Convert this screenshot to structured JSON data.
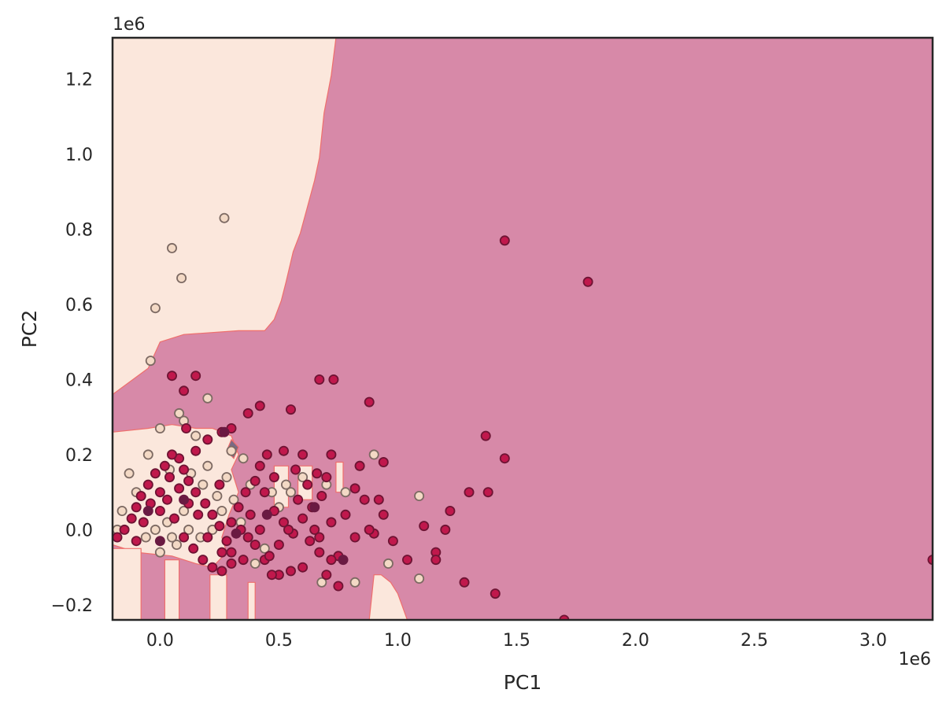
{
  "chart_data": {
    "type": "scatter",
    "title": "",
    "xlabel": "PC1",
    "ylabel": "PC2",
    "x_offset_label": "1e6",
    "y_offset_label": "1e6",
    "xlim": [
      -0.2,
      3.25
    ],
    "ylim": [
      -0.24,
      1.31
    ],
    "xticks": [
      0.0,
      0.5,
      1.0,
      1.5,
      2.0,
      2.5,
      3.0
    ],
    "xtick_labels": [
      "0.0",
      "0.5",
      "1.0",
      "1.5",
      "2.0",
      "2.5",
      "3.0"
    ],
    "yticks": [
      -0.2,
      0.0,
      0.2,
      0.4,
      0.6,
      0.8,
      1.0,
      1.2
    ],
    "ytick_labels": [
      "−0.2",
      "0.0",
      "0.2",
      "0.4",
      "0.6",
      "0.8",
      "1.0",
      "1.2"
    ],
    "grid": false,
    "legend": "none",
    "colors": {
      "background_region": "#d789a8",
      "light_region": "#fbe7dc",
      "boundary_line": "#ef6f6c",
      "small_region": "#7a6a84",
      "class_a_fill": "#c0184c",
      "class_a_edge": "#6e1434",
      "class_b_fill": "#f3d9c5",
      "class_b_edge": "#7d6a63",
      "class_c_fill": "#6a1a42",
      "axes_edge": "#262626"
    },
    "decision_regions": [
      {
        "name": "light-region-top-left",
        "color": "#fbe7dc",
        "points": [
          [
            -0.2,
            1.31
          ],
          [
            0.74,
            1.31
          ],
          [
            0.72,
            1.21
          ],
          [
            0.69,
            1.11
          ],
          [
            0.67,
            0.99
          ],
          [
            0.65,
            0.93
          ],
          [
            0.62,
            0.86
          ],
          [
            0.59,
            0.79
          ],
          [
            0.56,
            0.74
          ],
          [
            0.53,
            0.66
          ],
          [
            0.51,
            0.61
          ],
          [
            0.48,
            0.56
          ],
          [
            0.44,
            0.53
          ],
          [
            0.33,
            0.53
          ],
          [
            0.1,
            0.52
          ],
          [
            0.0,
            0.5
          ],
          [
            -0.05,
            0.43
          ],
          [
            -0.2,
            0.36
          ]
        ]
      },
      {
        "name": "light-region-bottom-left",
        "color": "#fbe7dc",
        "points": [
          [
            -0.2,
            0.26
          ],
          [
            -0.05,
            0.27
          ],
          [
            0.05,
            0.28
          ],
          [
            0.15,
            0.27
          ],
          [
            0.22,
            0.27
          ],
          [
            0.3,
            0.25
          ],
          [
            0.33,
            0.2
          ],
          [
            0.3,
            0.16
          ],
          [
            0.33,
            0.1
          ],
          [
            0.29,
            0.04
          ],
          [
            0.26,
            -0.02
          ],
          [
            0.28,
            -0.06
          ],
          [
            0.22,
            -0.1
          ],
          [
            0.15,
            -0.09
          ],
          [
            0.05,
            -0.07
          ],
          [
            -0.1,
            -0.06
          ],
          [
            -0.2,
            -0.04
          ]
        ]
      },
      {
        "name": "light-strip-1",
        "color": "#fbe7dc",
        "points": [
          [
            -0.2,
            -0.05
          ],
          [
            -0.08,
            -0.05
          ],
          [
            -0.08,
            -0.24
          ],
          [
            -0.2,
            -0.24
          ]
        ]
      },
      {
        "name": "light-strip-2",
        "color": "#fbe7dc",
        "points": [
          [
            0.02,
            -0.08
          ],
          [
            0.08,
            -0.08
          ],
          [
            0.08,
            -0.24
          ],
          [
            0.02,
            -0.24
          ]
        ]
      },
      {
        "name": "light-strip-3",
        "color": "#fbe7dc",
        "points": [
          [
            0.21,
            -0.12
          ],
          [
            0.28,
            -0.12
          ],
          [
            0.28,
            -0.24
          ],
          [
            0.21,
            -0.24
          ]
        ]
      },
      {
        "name": "light-strip-4",
        "color": "#fbe7dc",
        "points": [
          [
            0.37,
            -0.14
          ],
          [
            0.4,
            -0.14
          ],
          [
            0.4,
            -0.24
          ],
          [
            0.37,
            -0.24
          ]
        ]
      },
      {
        "name": "light-strip-5",
        "color": "#fbe7dc",
        "points": [
          [
            0.9,
            -0.12
          ],
          [
            0.93,
            -0.12
          ],
          [
            0.97,
            -0.14
          ],
          [
            1.0,
            -0.17
          ],
          [
            1.04,
            -0.24
          ],
          [
            0.88,
            -0.24
          ]
        ]
      },
      {
        "name": "light-spot-1",
        "color": "#fbe7dc",
        "points": [
          [
            0.58,
            0.17
          ],
          [
            0.64,
            0.17
          ],
          [
            0.64,
            0.08
          ],
          [
            0.58,
            0.08
          ]
        ]
      },
      {
        "name": "light-spot-2",
        "color": "#fbe7dc",
        "points": [
          [
            0.48,
            0.17
          ],
          [
            0.54,
            0.17
          ],
          [
            0.54,
            0.06
          ],
          [
            0.48,
            0.06
          ]
        ]
      },
      {
        "name": "light-spot-3",
        "color": "#fbe7dc",
        "points": [
          [
            0.74,
            0.18
          ],
          [
            0.77,
            0.18
          ],
          [
            0.77,
            0.1
          ],
          [
            0.74,
            0.1
          ]
        ]
      },
      {
        "name": "dark-gray-spot",
        "color": "#7a6a84",
        "points": [
          [
            0.28,
            0.21
          ],
          [
            0.3,
            0.24
          ],
          [
            0.33,
            0.22
          ],
          [
            0.31,
            0.19
          ]
        ]
      }
    ],
    "series": [
      {
        "name": "",
        "marker": "filled-crimson",
        "points": [
          [
            1.45,
            0.77
          ],
          [
            1.8,
            0.66
          ],
          [
            1.37,
            0.25
          ],
          [
            1.45,
            0.19
          ],
          [
            0.88,
            0.34
          ],
          [
            0.67,
            0.4
          ],
          [
            0.73,
            0.4
          ],
          [
            0.55,
            0.32
          ],
          [
            0.42,
            0.33
          ],
          [
            0.37,
            0.31
          ],
          [
            0.15,
            0.41
          ],
          [
            0.1,
            0.37
          ],
          [
            0.05,
            0.41
          ],
          [
            0.6,
            0.2
          ],
          [
            0.72,
            0.2
          ],
          [
            0.94,
            0.18
          ],
          [
            0.84,
            0.17
          ],
          [
            1.3,
            0.1
          ],
          [
            1.38,
            0.1
          ],
          [
            1.22,
            0.05
          ],
          [
            1.11,
            0.01
          ],
          [
            1.2,
            0.0
          ],
          [
            0.94,
            0.04
          ],
          [
            0.92,
            0.08
          ],
          [
            0.98,
            -0.03
          ],
          [
            1.04,
            -0.08
          ],
          [
            1.16,
            -0.06
          ],
          [
            1.16,
            -0.08
          ],
          [
            1.28,
            -0.14
          ],
          [
            1.41,
            -0.17
          ],
          [
            1.7,
            -0.24
          ],
          [
            3.25,
            -0.08
          ],
          [
            0.82,
            0.11
          ],
          [
            0.86,
            0.08
          ],
          [
            0.9,
            -0.01
          ],
          [
            0.88,
            0.0
          ],
          [
            0.82,
            -0.02
          ],
          [
            0.75,
            -0.07
          ],
          [
            0.72,
            -0.08
          ],
          [
            0.7,
            -0.12
          ],
          [
            0.75,
            -0.15
          ],
          [
            0.67,
            -0.06
          ],
          [
            0.63,
            -0.03
          ],
          [
            0.6,
            -0.1
          ],
          [
            0.55,
            -0.11
          ],
          [
            0.5,
            -0.12
          ],
          [
            0.47,
            -0.12
          ],
          [
            0.44,
            -0.08
          ],
          [
            0.4,
            -0.04
          ],
          [
            0.37,
            -0.02
          ],
          [
            0.35,
            -0.08
          ],
          [
            0.3,
            -0.06
          ],
          [
            0.28,
            -0.03
          ],
          [
            0.25,
            0.01
          ],
          [
            0.22,
            0.04
          ],
          [
            0.19,
            0.07
          ],
          [
            0.15,
            0.1
          ],
          [
            0.12,
            0.13
          ],
          [
            0.1,
            0.16
          ],
          [
            0.08,
            0.19
          ],
          [
            0.05,
            0.2
          ],
          [
            0.02,
            0.17
          ],
          [
            -0.02,
            0.15
          ],
          [
            -0.05,
            0.12
          ],
          [
            -0.08,
            0.09
          ],
          [
            -0.1,
            0.06
          ],
          [
            -0.12,
            0.03
          ],
          [
            -0.15,
            0.0
          ],
          [
            -0.18,
            -0.02
          ],
          [
            0.0,
            0.05
          ],
          [
            0.03,
            0.08
          ],
          [
            0.06,
            0.03
          ],
          [
            0.1,
            -0.02
          ],
          [
            0.14,
            -0.05
          ],
          [
            0.18,
            -0.08
          ],
          [
            0.22,
            -0.1
          ],
          [
            0.26,
            -0.06
          ],
          [
            0.3,
            0.02
          ],
          [
            0.33,
            0.06
          ],
          [
            0.36,
            0.1
          ],
          [
            0.4,
            0.13
          ],
          [
            0.44,
            0.1
          ],
          [
            0.48,
            0.05
          ],
          [
            0.52,
            0.02
          ],
          [
            0.56,
            -0.01
          ],
          [
            0.6,
            0.03
          ],
          [
            0.64,
            0.06
          ],
          [
            0.68,
            0.09
          ],
          [
            0.7,
            0.14
          ],
          [
            0.66,
            0.15
          ],
          [
            0.62,
            0.12
          ],
          [
            0.58,
            0.08
          ],
          [
            0.54,
            0.0
          ],
          [
            0.5,
            -0.04
          ],
          [
            0.46,
            -0.07
          ],
          [
            0.42,
            0.0
          ],
          [
            0.38,
            0.04
          ],
          [
            0.34,
            0.0
          ],
          [
            0.3,
            -0.09
          ],
          [
            0.26,
            -0.11
          ],
          [
            0.2,
            -0.02
          ],
          [
            0.16,
            0.04
          ],
          [
            0.12,
            0.07
          ],
          [
            0.08,
            0.11
          ],
          [
            0.04,
            0.14
          ],
          [
            0.0,
            0.1
          ],
          [
            -0.04,
            0.07
          ],
          [
            -0.07,
            0.02
          ],
          [
            -0.1,
            -0.03
          ],
          [
            0.45,
            0.2
          ],
          [
            0.52,
            0.21
          ],
          [
            0.57,
            0.16
          ],
          [
            0.65,
            0.0
          ],
          [
            0.78,
            0.04
          ],
          [
            0.72,
            0.02
          ],
          [
            0.67,
            -0.02
          ],
          [
            0.2,
            0.24
          ],
          [
            0.15,
            0.21
          ],
          [
            0.26,
            0.26
          ],
          [
            0.3,
            0.27
          ],
          [
            0.11,
            0.27
          ],
          [
            0.25,
            0.12
          ],
          [
            0.42,
            0.17
          ],
          [
            0.48,
            0.14
          ]
        ]
      },
      {
        "name": "",
        "marker": "hollow-beige",
        "points": [
          [
            0.27,
            0.83
          ],
          [
            0.05,
            0.75
          ],
          [
            0.09,
            0.67
          ],
          [
            -0.02,
            0.59
          ],
          [
            -0.04,
            0.45
          ],
          [
            0.2,
            0.35
          ],
          [
            0.08,
            0.31
          ],
          [
            0.0,
            0.27
          ],
          [
            0.1,
            0.29
          ],
          [
            0.15,
            0.25
          ],
          [
            0.13,
            0.15
          ],
          [
            0.18,
            0.12
          ],
          [
            0.24,
            0.09
          ],
          [
            0.28,
            0.14
          ],
          [
            0.35,
            0.19
          ],
          [
            0.38,
            0.12
          ],
          [
            0.31,
            0.08
          ],
          [
            0.22,
            0.0
          ],
          [
            0.17,
            -0.02
          ],
          [
            0.12,
            0.0
          ],
          [
            0.07,
            -0.04
          ],
          [
            0.03,
            0.02
          ],
          [
            -0.02,
            0.0
          ],
          [
            -0.06,
            -0.02
          ],
          [
            -0.1,
            0.1
          ],
          [
            -0.13,
            0.15
          ],
          [
            -0.16,
            0.05
          ],
          [
            -0.18,
            0.0
          ],
          [
            0.0,
            -0.06
          ],
          [
            0.05,
            -0.02
          ],
          [
            0.1,
            0.05
          ],
          [
            0.2,
            0.17
          ],
          [
            0.26,
            0.05
          ],
          [
            0.34,
            0.02
          ],
          [
            0.4,
            -0.09
          ],
          [
            0.44,
            -0.05
          ],
          [
            0.5,
            0.06
          ],
          [
            0.55,
            0.1
          ],
          [
            0.6,
            0.14
          ],
          [
            0.7,
            0.12
          ],
          [
            0.78,
            0.1
          ],
          [
            0.84,
            0.17
          ],
          [
            0.9,
            0.2
          ],
          [
            1.09,
            0.09
          ],
          [
            1.09,
            -0.13
          ],
          [
            0.96,
            -0.09
          ],
          [
            0.82,
            -0.14
          ],
          [
            0.68,
            -0.14
          ],
          [
            0.53,
            0.12
          ],
          [
            0.47,
            0.1
          ],
          [
            0.3,
            0.21
          ],
          [
            0.04,
            0.16
          ],
          [
            -0.05,
            0.2
          ]
        ]
      },
      {
        "name": "",
        "marker": "filled-dark-purple",
        "points": [
          [
            0.77,
            -0.08
          ],
          [
            0.65,
            0.06
          ],
          [
            0.45,
            0.04
          ],
          [
            0.32,
            -0.01
          ],
          [
            0.1,
            0.08
          ],
          [
            -0.05,
            0.05
          ],
          [
            0.27,
            0.26
          ],
          [
            0.0,
            -0.03
          ]
        ]
      }
    ]
  }
}
